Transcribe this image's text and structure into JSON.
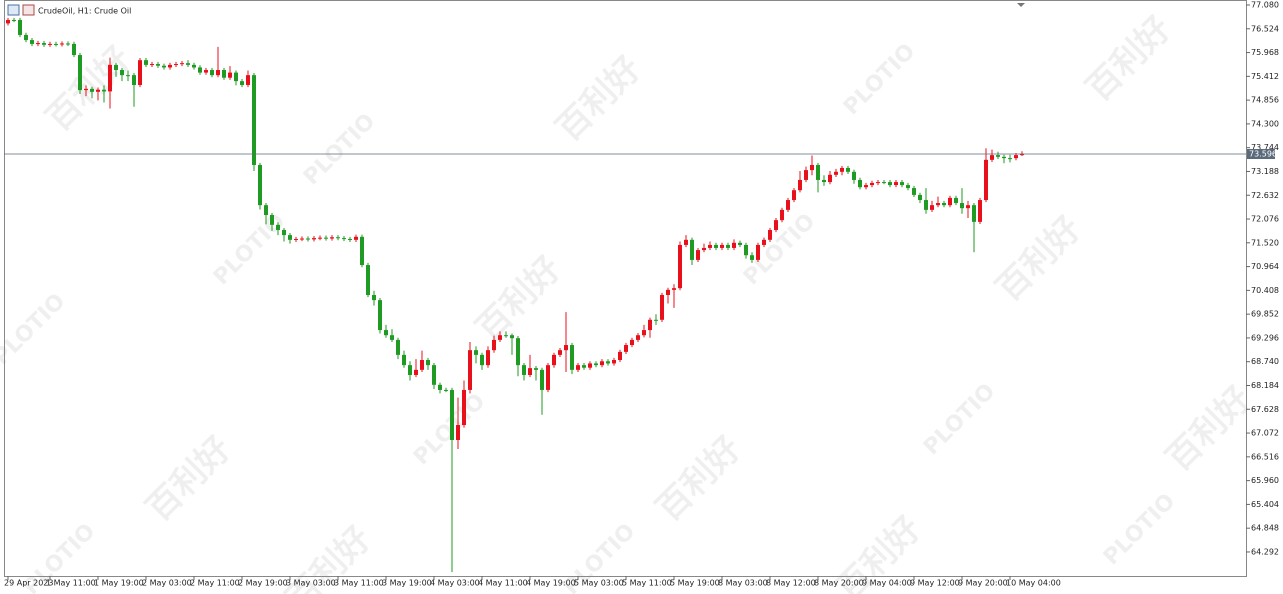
{
  "chart_data": {
    "type": "candlestick",
    "title": "CrudeOil, H1:  Crude Oil",
    "watermark": "百利好",
    "watermark_brand": "PLOTIO",
    "up_color": "#e8111b",
    "down_color": "#1f9a22",
    "last_price": 73.596,
    "last_price_color": "#5a6a7a",
    "ylim": [
      63.73,
      77.197
    ],
    "yticks": [
      {
        "value": 77.08,
        "label": "77.080"
      },
      76.524,
      75.968,
      75.412,
      74.856,
      {
        "value": 74.3,
        "label": "74.300"
      },
      73.744,
      73.188,
      72.632,
      72.076,
      {
        "value": 71.52,
        "label": "71.520"
      },
      70.964,
      70.408,
      69.852,
      69.296,
      {
        "value": 68.74,
        "label": "68.740"
      },
      68.184,
      67.628,
      67.072,
      66.516,
      {
        "value": 65.96,
        "label": "65.960"
      },
      65.404,
      64.848,
      64.292
    ],
    "categories": [
      "29 Apr 2023",
      null,
      null,
      null,
      null,
      null,
      null,
      "1 May 11:00",
      null,
      null,
      null,
      null,
      null,
      null,
      null,
      "1 May 19:00",
      null,
      null,
      null,
      null,
      null,
      null,
      null,
      "2 May 03:00",
      null,
      null,
      null,
      null,
      null,
      null,
      null,
      "2 May 11:00",
      null,
      null,
      null,
      null,
      null,
      null,
      null,
      "2 May 19:00",
      null,
      null,
      null,
      null,
      null,
      null,
      null,
      "3 May 03:00",
      null,
      null,
      null,
      null,
      null,
      null,
      null,
      "3 May 11:00",
      null,
      null,
      null,
      null,
      null,
      null,
      null,
      "3 May 19:00",
      null,
      null,
      null,
      null,
      null,
      null,
      null,
      "4 May 03:00",
      null,
      null,
      null,
      null,
      null,
      null,
      null,
      "4 May 11:00",
      null,
      null,
      null,
      null,
      null,
      null,
      null,
      "4 May 19:00",
      null,
      null,
      null,
      null,
      null,
      null,
      null,
      "5 May 03:00",
      null,
      null,
      null,
      null,
      null,
      null,
      null,
      "5 May 11:00",
      null,
      null,
      null,
      null,
      null,
      null,
      null,
      "5 May 19:00",
      null,
      null,
      null,
      null,
      null,
      null,
      null,
      "8 May 03:00",
      null,
      null,
      null,
      null,
      null,
      null,
      null,
      "8 May 12:00",
      null,
      null,
      null,
      null,
      null,
      null,
      null,
      "8 May 20:00",
      null,
      null,
      null,
      null,
      null,
      null,
      null,
      "9 May 04:00",
      null,
      null,
      null,
      null,
      null,
      null,
      null,
      "9 May 12:00",
      null,
      null,
      null,
      null,
      null,
      null,
      null,
      "9 May 20:00",
      null,
      null,
      null,
      null,
      null,
      null,
      null,
      "10 May 04:00",
      null,
      null
    ],
    "open": [
      76.65,
      76.73,
      76.73,
      76.38,
      76.26,
      76.17,
      76.19,
      76.15,
      76.17,
      76.16,
      76.18,
      76.17,
      75.91,
      75.09,
      75.12,
      75.05,
      75.1,
      75.06,
      75.68,
      75.56,
      75.44,
      75.44,
      75.21,
      75.79,
      75.68,
      75.7,
      75.66,
      75.62,
      75.68,
      75.7,
      75.72,
      75.68,
      75.62,
      75.5,
      75.56,
      75.44,
      75.56,
      75.38,
      75.5,
      75.3,
      75.21,
      75.44,
      73.34,
      72.4,
      72.17,
      71.94,
      71.82,
      71.7,
      71.59,
      71.61,
      71.62,
      71.6,
      71.63,
      71.64,
      71.62,
      71.65,
      71.63,
      71.61,
      71.59,
      71.66,
      71.0,
      70.3,
      70.18,
      69.48,
      69.36,
      69.25,
      68.9,
      68.66,
      68.43,
      68.55,
      68.78,
      68.66,
      68.2,
      68.08,
      68.08,
      66.91,
      67.26,
      68.08,
      69.01,
      68.9,
      68.66,
      69.01,
      69.25,
      69.36,
      69.36,
      69.29,
      68.66,
      68.43,
      68.59,
      68.55,
      68.08,
      68.66,
      68.9,
      69.01,
      69.13,
      68.55,
      68.66,
      68.6,
      68.7,
      68.66,
      68.75,
      68.7,
      68.78,
      68.97,
      69.13,
      69.25,
      69.36,
      69.48,
      69.72,
      69.72,
      70.3,
      70.42,
      70.46,
      71.47,
      71.59,
      71.12,
      71.35,
      71.4,
      71.47,
      71.4,
      71.47,
      71.4,
      71.52,
      71.47,
      71.23,
      71.12,
      71.47,
      71.59,
      71.82,
      72.05,
      72.29,
      72.52,
      72.75,
      72.99,
      73.22,
      73.34,
      72.99,
      72.94,
      73.11,
      73.18,
      73.27,
      73.18,
      72.99,
      72.82,
      72.87,
      72.92,
      72.94,
      72.94,
      72.87,
      72.94,
      72.87,
      72.8,
      72.64,
      72.52,
      72.29,
      72.4,
      72.45,
      72.4,
      72.57,
      72.45,
      72.33,
      72.4,
      72.01,
      72.52,
      73.46,
      73.57,
      73.53,
      73.5,
      73.5,
      73.57
    ],
    "high": [
      76.78,
      76.78,
      76.78,
      76.43,
      76.31,
      76.24,
      76.24,
      76.22,
      76.22,
      76.23,
      76.23,
      76.22,
      75.96,
      75.2,
      75.17,
      75.15,
      75.2,
      75.85,
      75.73,
      75.61,
      75.55,
      75.49,
      75.84,
      75.84,
      75.75,
      75.75,
      75.71,
      75.73,
      75.75,
      75.77,
      75.79,
      75.73,
      75.67,
      75.61,
      75.61,
      76.1,
      75.61,
      75.65,
      75.55,
      75.35,
      75.55,
      75.49,
      73.39,
      72.45,
      72.22,
      72.0,
      71.87,
      71.75,
      71.66,
      71.67,
      71.67,
      71.68,
      71.69,
      71.69,
      71.7,
      71.7,
      71.68,
      71.66,
      71.71,
      71.71,
      71.05,
      70.4,
      70.23,
      69.6,
      69.5,
      69.3,
      69.0,
      68.75,
      68.8,
      69.0,
      68.83,
      68.71,
      68.25,
      68.13,
      68.13,
      67.9,
      68.3,
      69.2,
      69.1,
      68.95,
      69.1,
      69.35,
      69.45,
      69.45,
      69.4,
      69.34,
      68.71,
      68.9,
      68.64,
      68.6,
      68.71,
      68.95,
      69.06,
      69.9,
      69.18,
      68.71,
      68.71,
      68.75,
      68.75,
      68.8,
      68.8,
      68.83,
      69.02,
      69.18,
      69.3,
      69.41,
      69.6,
      69.77,
      69.85,
      70.35,
      70.47,
      70.55,
      71.55,
      71.7,
      71.64,
      71.4,
      71.5,
      71.55,
      71.52,
      71.52,
      71.52,
      71.6,
      71.57,
      71.52,
      71.3,
      71.52,
      71.64,
      71.87,
      72.1,
      72.34,
      72.57,
      72.8,
      73.2,
      73.3,
      73.56,
      73.39,
      73.1,
      73.2,
      73.25,
      73.32,
      73.32,
      73.23,
      73.04,
      72.92,
      72.97,
      72.99,
      72.99,
      72.99,
      72.99,
      72.99,
      72.92,
      72.85,
      72.69,
      72.8,
      72.5,
      72.6,
      72.5,
      72.62,
      72.62,
      72.8,
      72.5,
      72.45,
      72.57,
      73.73,
      73.7,
      73.65,
      73.58,
      73.58,
      73.62,
      73.66
    ],
    "low": [
      76.6,
      76.68,
      76.33,
      76.21,
      76.12,
      76.12,
      76.1,
      76.1,
      76.11,
      76.11,
      76.12,
      75.86,
      75.0,
      74.95,
      74.9,
      74.85,
      74.8,
      74.66,
      75.4,
      75.3,
      75.3,
      74.7,
      75.16,
      75.63,
      75.63,
      75.61,
      75.57,
      75.57,
      75.63,
      75.65,
      75.63,
      75.57,
      75.45,
      75.45,
      75.39,
      75.39,
      75.33,
      75.33,
      75.2,
      75.16,
      75.16,
      73.2,
      72.3,
      71.95,
      71.8,
      71.7,
      71.55,
      71.5,
      71.54,
      71.56,
      71.55,
      71.55,
      71.58,
      71.57,
      71.57,
      71.58,
      71.56,
      71.54,
      71.54,
      70.95,
      70.25,
      70.05,
      69.4,
      69.3,
      69.2,
      68.8,
      68.6,
      68.3,
      68.38,
      68.5,
      68.55,
      68.1,
      68.0,
      68.03,
      63.82,
      66.7,
      67.2,
      68.0,
      68.7,
      68.55,
      68.6,
      68.95,
      69.2,
      69.3,
      68.9,
      68.4,
      68.3,
      68.38,
      68.3,
      67.5,
      68.03,
      68.6,
      68.85,
      68.5,
      68.45,
      68.5,
      68.55,
      68.55,
      68.61,
      68.61,
      68.65,
      68.65,
      68.73,
      68.92,
      69.08,
      69.2,
      69.31,
      69.3,
      69.6,
      69.67,
      70.1,
      70.0,
      70.41,
      71.42,
      71.0,
      71.07,
      71.3,
      71.35,
      71.35,
      71.35,
      71.35,
      71.35,
      71.42,
      71.15,
      71.05,
      71.07,
      71.42,
      71.54,
      71.77,
      72.0,
      72.24,
      72.47,
      72.7,
      72.94,
      73.1,
      72.7,
      72.85,
      72.89,
      73.06,
      73.1,
      73.13,
      72.9,
      72.77,
      72.77,
      72.82,
      72.87,
      72.89,
      72.82,
      72.82,
      72.82,
      72.75,
      72.59,
      72.45,
      72.2,
      72.24,
      72.35,
      72.35,
      72.35,
      72.4,
      72.2,
      72.1,
      71.3,
      71.96,
      72.47,
      73.41,
      73.48,
      73.38,
      73.4,
      73.45,
      73.55
    ],
    "close": [
      76.73,
      76.73,
      76.38,
      76.26,
      76.17,
      76.19,
      76.15,
      76.17,
      76.16,
      76.18,
      76.17,
      75.91,
      75.09,
      75.12,
      75.05,
      75.1,
      75.06,
      75.68,
      75.56,
      75.44,
      75.44,
      75.21,
      75.79,
      75.68,
      75.7,
      75.66,
      75.62,
      75.68,
      75.7,
      75.72,
      75.68,
      75.62,
      75.5,
      75.56,
      75.44,
      75.56,
      75.38,
      75.5,
      75.3,
      75.21,
      75.44,
      73.34,
      72.4,
      72.17,
      71.94,
      71.82,
      71.7,
      71.59,
      71.61,
      71.62,
      71.6,
      71.63,
      71.64,
      71.62,
      71.65,
      71.63,
      71.61,
      71.59,
      71.66,
      71.0,
      70.3,
      70.18,
      69.48,
      69.36,
      69.25,
      68.9,
      68.66,
      68.43,
      68.55,
      68.78,
      68.66,
      68.2,
      68.08,
      68.08,
      66.91,
      67.26,
      68.08,
      69.01,
      68.9,
      68.66,
      69.01,
      69.25,
      69.36,
      69.36,
      69.29,
      68.66,
      68.43,
      68.59,
      68.55,
      68.08,
      68.66,
      68.9,
      69.01,
      69.13,
      68.55,
      68.66,
      68.6,
      68.7,
      68.66,
      68.75,
      68.7,
      68.78,
      68.97,
      69.13,
      69.25,
      69.36,
      69.48,
      69.72,
      69.72,
      70.3,
      70.42,
      70.46,
      71.47,
      71.59,
      71.12,
      71.35,
      71.4,
      71.47,
      71.4,
      71.47,
      71.4,
      71.52,
      71.47,
      71.23,
      71.12,
      71.47,
      71.59,
      71.82,
      72.05,
      72.29,
      72.52,
      72.75,
      72.99,
      73.22,
      73.34,
      72.99,
      72.94,
      73.11,
      73.18,
      73.27,
      73.18,
      72.99,
      72.82,
      72.87,
      72.92,
      72.94,
      72.94,
      72.87,
      72.94,
      72.87,
      72.8,
      72.64,
      72.52,
      72.29,
      72.4,
      72.45,
      72.4,
      72.57,
      72.45,
      72.33,
      72.4,
      72.01,
      72.52,
      73.46,
      73.57,
      73.53,
      73.5,
      73.5,
      73.57,
      73.6
    ]
  }
}
